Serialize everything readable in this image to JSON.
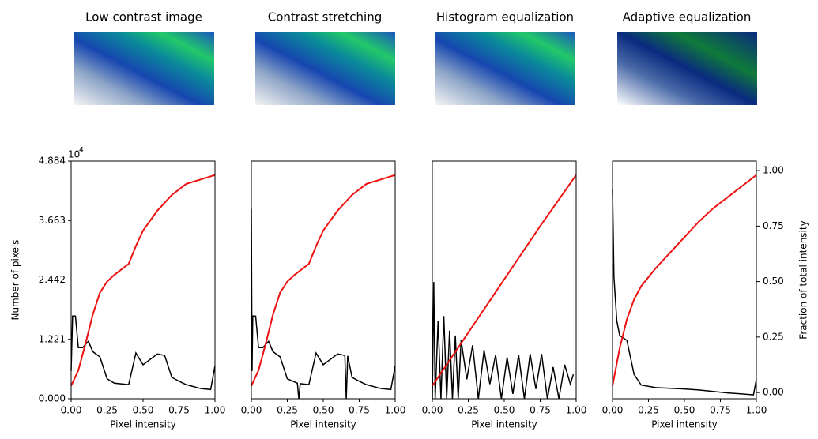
{
  "chart_data": [
    {
      "type": "line",
      "title": "Low contrast image",
      "xlabel": "Pixel intensity",
      "ylabel": "Number of pixels",
      "yoffset": {
        "base": "10",
        "exponent": "4"
      },
      "xlim": [
        0,
        1
      ],
      "ylim": [
        0,
        4.884
      ],
      "y2lim": [
        -0.028,
        1.043
      ],
      "xticks": [
        {
          "value": 0,
          "label": "0.00"
        },
        {
          "value": 0.25,
          "label": "0.25"
        },
        {
          "value": 0.5,
          "label": "0.50"
        },
        {
          "value": 0.75,
          "label": "0.75"
        },
        {
          "value": 1,
          "label": "1.00"
        }
      ],
      "yticks": [
        {
          "value": 0,
          "label": "0.000"
        },
        1.221,
        2.442,
        3.663,
        4.884
      ],
      "series": [
        {
          "color": "#000000",
          "x": [
            0,
            0.01,
            0.03,
            0.05,
            0.08,
            0.12,
            0.15,
            0.2,
            0.25,
            0.3,
            0.4,
            0.45,
            0.5,
            0.6,
            0.65,
            0.7,
            0.75,
            0.8,
            0.9,
            0.97,
            1.0
          ],
          "values": [
            0.57,
            1.7,
            1.7,
            1.05,
            1.05,
            1.18,
            0.97,
            0.86,
            0.41,
            0.32,
            0.29,
            0.94,
            0.7,
            0.92,
            0.89,
            0.44,
            0.36,
            0.29,
            0.21,
            0.19,
            0.68
          ]
        },
        {
          "color": "#ee1111",
          "axis": "y2",
          "x": [
            0,
            0.05,
            0.1,
            0.15,
            0.2,
            0.25,
            0.3,
            0.4,
            0.45,
            0.5,
            0.6,
            0.7,
            0.8,
            0.9,
            1.0
          ],
          "values": [
            0.03,
            0.1,
            0.22,
            0.35,
            0.45,
            0.5,
            0.53,
            0.58,
            0.66,
            0.73,
            0.82,
            0.89,
            0.94,
            0.96,
            0.98
          ]
        }
      ]
    },
    {
      "type": "line",
      "title": "Contrast stretching",
      "xlabel": "Pixel intensity",
      "xlim": [
        0,
        1
      ],
      "ylim": [
        0,
        4.884
      ],
      "y2lim": [
        -0.028,
        1.043
      ],
      "xticks": [
        {
          "value": 0,
          "label": "0.00"
        },
        {
          "value": 0.25,
          "label": "0.25"
        },
        {
          "value": 0.5,
          "label": "0.50"
        },
        {
          "value": 0.75,
          "label": "0.75"
        },
        {
          "value": 1,
          "label": "1.00"
        }
      ],
      "series": [
        {
          "color": "#000000",
          "x": [
            0,
            0.005,
            0.01,
            0.03,
            0.05,
            0.08,
            0.12,
            0.15,
            0.2,
            0.25,
            0.32,
            0.33,
            0.34,
            0.4,
            0.45,
            0.5,
            0.6,
            0.65,
            0.66,
            0.67,
            0.7,
            0.75,
            0.8,
            0.9,
            0.97,
            1.0
          ],
          "values": [
            3.9,
            0.57,
            1.7,
            1.7,
            1.05,
            1.05,
            1.18,
            0.97,
            0.86,
            0.41,
            0.32,
            0,
            0.31,
            0.29,
            0.94,
            0.7,
            0.92,
            0.89,
            0,
            0.88,
            0.44,
            0.36,
            0.29,
            0.21,
            0.19,
            0.68
          ]
        },
        {
          "color": "#ee1111",
          "axis": "y2",
          "x": [
            0,
            0.05,
            0.1,
            0.15,
            0.2,
            0.25,
            0.3,
            0.4,
            0.45,
            0.5,
            0.6,
            0.7,
            0.8,
            0.9,
            1.0
          ],
          "values": [
            0.03,
            0.1,
            0.22,
            0.35,
            0.45,
            0.5,
            0.53,
            0.58,
            0.66,
            0.73,
            0.82,
            0.89,
            0.94,
            0.96,
            0.98
          ]
        }
      ]
    },
    {
      "type": "line",
      "title": "Histogram equalization",
      "xlabel": "Pixel intensity",
      "xlim": [
        0,
        1
      ],
      "ylim": [
        0,
        4.884
      ],
      "y2lim": [
        -0.028,
        1.043
      ],
      "xticks": [
        {
          "value": 0,
          "label": "0.00"
        },
        {
          "value": 0.25,
          "label": "0.25"
        },
        {
          "value": 0.5,
          "label": "0.50"
        },
        {
          "value": 0.75,
          "label": "0.75"
        },
        {
          "value": 1,
          "label": "1.00"
        }
      ],
      "series": [
        {
          "color": "#000000",
          "x": [
            0,
            0.01,
            0.02,
            0.04,
            0.06,
            0.08,
            0.1,
            0.12,
            0.14,
            0.16,
            0.18,
            0.2,
            0.24,
            0.28,
            0.32,
            0.36,
            0.4,
            0.44,
            0.48,
            0.52,
            0.56,
            0.6,
            0.64,
            0.68,
            0.72,
            0.76,
            0.8,
            0.84,
            0.88,
            0.92,
            0.96,
            0.98
          ],
          "values": [
            0,
            2.4,
            0,
            1.6,
            0,
            1.7,
            0,
            1.4,
            0,
            1.3,
            0,
            1.2,
            0.4,
            1.1,
            0,
            1.0,
            0.3,
            0.9,
            0,
            0.85,
            0.1,
            0.9,
            0,
            0.92,
            0.2,
            0.92,
            0,
            0.65,
            0,
            0.7,
            0.3,
            0.5
          ]
        },
        {
          "color": "#ee1111",
          "axis": "y2",
          "x": [
            0,
            0.25,
            0.5,
            0.75,
            1.0
          ],
          "values": [
            0.03,
            0.27,
            0.51,
            0.75,
            0.98
          ]
        }
      ]
    },
    {
      "type": "line",
      "title": "Adaptive equalization",
      "xlabel": "Pixel intensity",
      "y2label": "Fraction of total intensity",
      "xlim": [
        0,
        1
      ],
      "ylim": [
        0,
        4.884
      ],
      "y2lim": [
        -0.028,
        1.043
      ],
      "xticks": [
        {
          "value": 0,
          "label": "0.00"
        },
        {
          "value": 0.25,
          "label": "0.25"
        },
        {
          "value": 0.5,
          "label": "0.50"
        },
        {
          "value": 0.75,
          "label": "0.75"
        },
        {
          "value": 1,
          "label": "1.00"
        }
      ],
      "y2ticks": [
        {
          "value": 0,
          "label": "0.00"
        },
        {
          "value": 0.25,
          "label": "0.25"
        },
        {
          "value": 0.5,
          "label": "0.50"
        },
        {
          "value": 0.75,
          "label": "0.75"
        },
        {
          "value": 1,
          "label": "1.00"
        }
      ],
      "series": [
        {
          "color": "#000000",
          "x": [
            0,
            0.01,
            0.03,
            0.05,
            0.1,
            0.15,
            0.2,
            0.3,
            0.5,
            0.6,
            0.7,
            0.8,
            0.9,
            0.98,
            1.0
          ],
          "values": [
            4.3,
            2.5,
            1.6,
            1.3,
            1.2,
            0.5,
            0.28,
            0.23,
            0.2,
            0.18,
            0.15,
            0.12,
            0.1,
            0.08,
            0.4
          ]
        },
        {
          "color": "#ee1111",
          "axis": "y2",
          "x": [
            0,
            0.05,
            0.1,
            0.15,
            0.2,
            0.3,
            0.4,
            0.5,
            0.6,
            0.7,
            0.8,
            0.9,
            1.0
          ],
          "values": [
            0.03,
            0.2,
            0.33,
            0.42,
            0.48,
            0.56,
            0.63,
            0.7,
            0.77,
            0.83,
            0.88,
            0.93,
            0.98
          ]
        }
      ]
    }
  ]
}
